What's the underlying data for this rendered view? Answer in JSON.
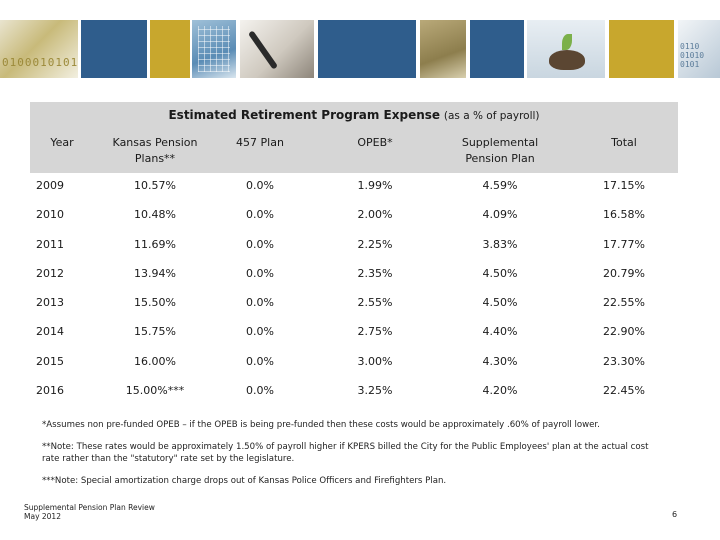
{
  "banner": {
    "left_digits": "0100010101",
    "right_digits": "0110\n01010\n0101",
    "colors": {
      "blue": "#2f5d8c",
      "gold": "#c8a72d"
    }
  },
  "table": {
    "title_main": "Estimated Retirement Program Expense",
    "title_sub": "(as a % of payroll)",
    "columns": [
      "Year",
      "Kansas Pension Plans**",
      "457 Plan",
      "OPEB*",
      "Supplemental Pension Plan",
      "Total"
    ],
    "rows": [
      [
        "2009",
        "10.57%",
        "0.0%",
        "1.99%",
        "4.59%",
        "17.15%"
      ],
      [
        "2010",
        "10.48%",
        "0.0%",
        "2.00%",
        "4.09%",
        "16.58%"
      ],
      [
        "2011",
        "11.69%",
        "0.0%",
        "2.25%",
        "3.83%",
        "17.77%"
      ],
      [
        "2012",
        "13.94%",
        "0.0%",
        "2.35%",
        "4.50%",
        "20.79%"
      ],
      [
        "2013",
        "15.50%",
        "0.0%",
        "2.55%",
        "4.50%",
        "22.55%"
      ],
      [
        "2014",
        "15.75%",
        "0.0%",
        "2.75%",
        "4.40%",
        "22.90%"
      ],
      [
        "2015",
        "16.00%",
        "0.0%",
        "3.00%",
        "4.30%",
        "23.30%"
      ],
      [
        "2016",
        "15.00%***",
        "0.0%",
        "3.25%",
        "4.20%",
        "22.45%"
      ]
    ]
  },
  "notes": {
    "note1": "*Assumes non pre-funded OPEB – if the OPEB is being pre-funded then these costs would be approximately .60% of payroll lower.",
    "note2": "**Note: These rates would be approximately 1.50% of payroll higher if KPERS billed the City for the Public Employees' plan at the actual cost rate rather than the \"statutory\" rate set by the legislature.",
    "note3": "***Note: Special amortization charge drops out of Kansas Police Officers and Firefighters Plan."
  },
  "footer": {
    "line1": "Supplemental Pension Plan Review",
    "line2": "May 2012",
    "page_number": "6"
  }
}
